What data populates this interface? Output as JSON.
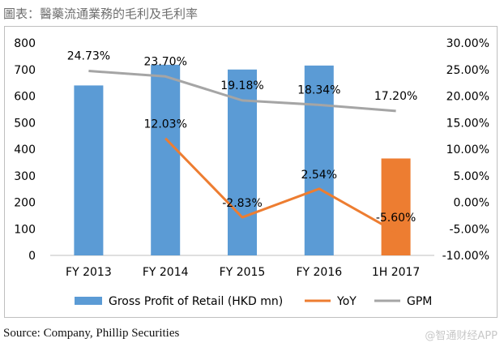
{
  "figure_title": "圖表：醫藥流通業務的毛利及毛利率",
  "source": "Source: Company, Phillip Securities",
  "watermark": "@智通财经APP",
  "colors": {
    "bar": "#5b9bd5",
    "bar_highlight": "#ed7d31",
    "yoy": "#ed7d31",
    "gpm": "#a5a5a5",
    "axis": "#bfbfbf",
    "text": "#000000"
  },
  "chart_data": {
    "type": "bar",
    "categories": [
      "FY 2013",
      "FY 2014",
      "FY 2015",
      "FY 2016",
      "1H 2017"
    ],
    "series": [
      {
        "name": "Gross Profit of Retail (HKD mn)",
        "kind": "bar",
        "axis": "left",
        "values": [
          640,
          718,
          700,
          715,
          365
        ],
        "highlight_index": 4
      },
      {
        "name": "YoY",
        "kind": "line",
        "axis": "right",
        "values": [
          null,
          12.03,
          -2.83,
          2.54,
          -5.6
        ],
        "labels": [
          "",
          "12.03%",
          "-2.83%",
          "2.54%",
          "-5.60%"
        ]
      },
      {
        "name": "GPM",
        "kind": "line",
        "axis": "right",
        "values": [
          24.73,
          23.7,
          19.18,
          18.34,
          17.2
        ],
        "labels": [
          "24.73%",
          "23.70%",
          "19.18%",
          "18.34%",
          "17.20%"
        ]
      }
    ],
    "y_left": {
      "min": 0,
      "max": 800,
      "ticks": [
        "0",
        "100",
        "200",
        "300",
        "400",
        "500",
        "600",
        "700",
        "800"
      ]
    },
    "y_right": {
      "min": -10,
      "max": 30,
      "ticks": [
        "-10.00%",
        "-5.00%",
        "0.00%",
        "5.00%",
        "10.00%",
        "15.00%",
        "20.00%",
        "25.00%",
        "30.00%"
      ]
    },
    "legend": [
      "Gross Profit of Retail (HKD mn)",
      "YoY",
      "GPM"
    ],
    "legend_position": "bottom",
    "grid": false
  }
}
